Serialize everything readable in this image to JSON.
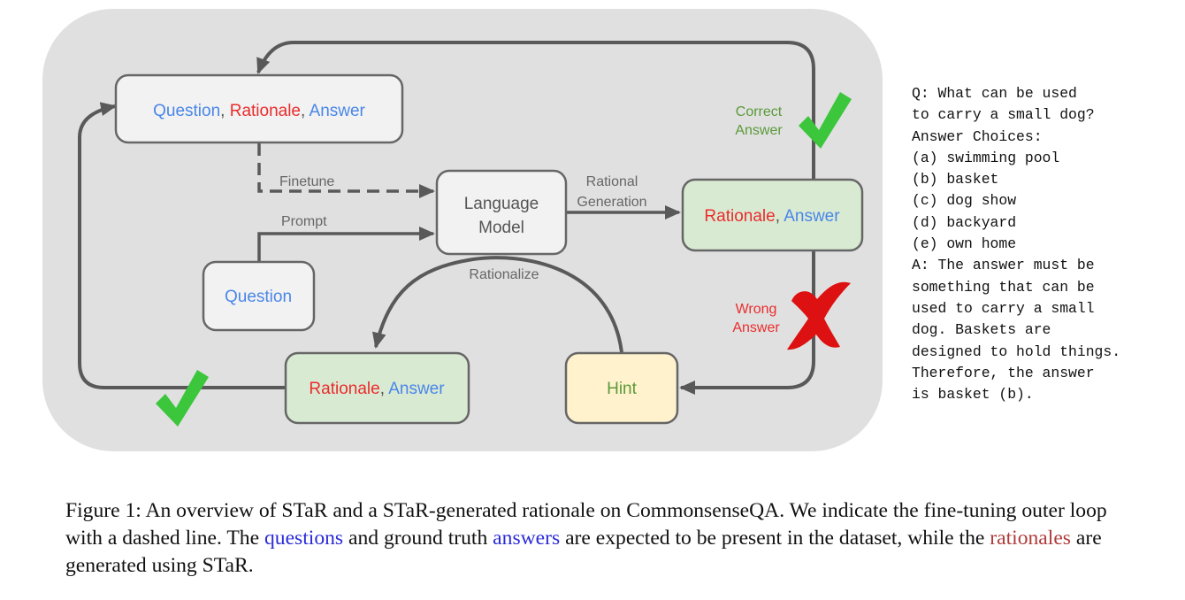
{
  "diagram": {
    "nodes": {
      "top_box": {
        "part1": "Question",
        "sep1": ", ",
        "part2": "Rationale",
        "sep2": ", ",
        "part3": "Answer"
      },
      "language_model": {
        "line1": "Language",
        "line2": "Model"
      },
      "right_box": {
        "part1": "Rationale",
        "sep1": ", ",
        "part2": "Answer"
      },
      "question_box": {
        "label": "Question"
      },
      "bottom_left_box": {
        "part1": "Rationale",
        "sep1": ", ",
        "part2": "Answer"
      },
      "hint_box": {
        "label": "Hint"
      }
    },
    "edges": {
      "finetune": "Finetune",
      "prompt": "Prompt",
      "rational_generation_line1": "Rational",
      "rational_generation_line2": "Generation",
      "rationalize": "Rationalize",
      "correct_line1": "Correct",
      "correct_line2": "Answer",
      "wrong_line1": "Wrong",
      "wrong_line2": "Answer"
    },
    "colors": {
      "panel": "#e0e0e0",
      "box_grey": "#f2f2f2",
      "box_green": "#d9ead3",
      "box_yellow": "#fff2cc",
      "border": "#666666",
      "edge": "#595959",
      "question_blue": "#4a86e8",
      "rationale_red": "#ea2d2d",
      "check_green": "#3cc63c",
      "cross_red": "#dd1111"
    }
  },
  "example": {
    "lines": [
      "Q: What can be used",
      "to carry a small dog?",
      "Answer Choices:",
      "(a) swimming pool",
      "(b) basket",
      "(c) dog show",
      "(d) backyard",
      "(e) own home",
      "A: The answer must be",
      "something that can be",
      "used to carry a small",
      "dog. Baskets are",
      "designed to hold things.",
      "Therefore, the answer",
      "is basket (b)."
    ]
  },
  "caption": {
    "part1": "Figure 1: An overview of STaR and a STaR-generated rationale on CommonsenseQA. We indicate the fine-tuning outer loop with a dashed line. The ",
    "questions": "questions",
    "part2": " and ground truth ",
    "answers": "answers",
    "part3": " are expected to be present in the dataset, while the ",
    "rationales": "rationales",
    "part4": " are generated using STaR."
  }
}
